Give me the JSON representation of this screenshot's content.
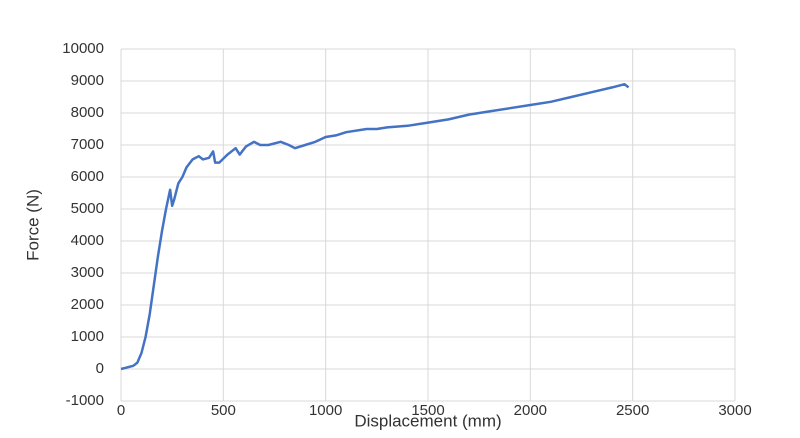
{
  "chart_data": {
    "type": "line",
    "x_label": "Displacement (mm)",
    "y_label": "Force (N)",
    "x": [
      0,
      30,
      60,
      80,
      100,
      120,
      140,
      160,
      180,
      200,
      220,
      240,
      250,
      260,
      280,
      300,
      320,
      350,
      380,
      400,
      430,
      450,
      460,
      480,
      520,
      560,
      580,
      610,
      650,
      680,
      720,
      780,
      820,
      850,
      900,
      950,
      1000,
      1050,
      1100,
      1200,
      1250,
      1300,
      1400,
      1500,
      1600,
      1700,
      1800,
      1900,
      2000,
      2100,
      2200,
      2300,
      2400,
      2460,
      2480
    ],
    "values": [
      0,
      50,
      100,
      200,
      500,
      1000,
      1700,
      2600,
      3500,
      4300,
      5000,
      5600,
      5100,
      5300,
      5800,
      6000,
      6300,
      6550,
      6650,
      6550,
      6600,
      6800,
      6450,
      6450,
      6700,
      6900,
      6700,
      6950,
      7100,
      7000,
      7000,
      7100,
      7000,
      6900,
      7000,
      7100,
      7250,
      7300,
      7400,
      7500,
      7500,
      7550,
      7600,
      7700,
      7800,
      7950,
      8050,
      8150,
      8250,
      8350,
      8500,
      8650,
      8800,
      8900,
      8800
    ],
    "color": "#4472c4",
    "xlim": [
      0,
      3000
    ],
    "xticks": [
      0,
      500,
      1000,
      1500,
      2000,
      2500,
      3000
    ],
    "ylim": [
      -1000,
      10000
    ],
    "yticks": [
      -1000,
      0,
      1000,
      2000,
      3000,
      4000,
      5000,
      6000,
      7000,
      8000,
      9000,
      10000
    ],
    "grid": true
  }
}
